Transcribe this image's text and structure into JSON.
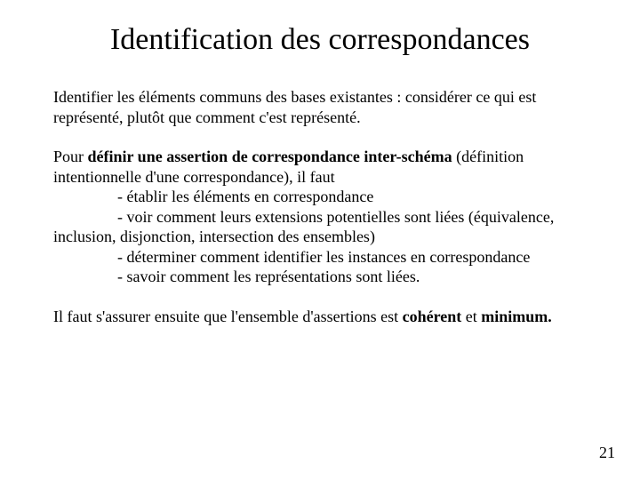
{
  "title": "Identification des correspondances",
  "p1": "Identifier les éléments communs des bases existantes : considérer ce qui est représenté, plutôt que comment c'est représenté.",
  "p2_pre": "Pour ",
  "p2_bold": "définir une assertion de correspondance inter-schéma",
  "p2_post": " (définition intentionnelle d'une correspondance), il faut",
  "b1": "- établir les éléments en correspondance",
  "b2": "- voir comment leurs extensions potentielles sont liées (équivalence,",
  "b2c": "inclusion, disjonction, intersection des ensembles)",
  "b3": "- déterminer comment identifier les instances en correspondance",
  "b4": "- savoir comment les représentations sont liées.",
  "p3_pre": "Il faut s'assurer ensuite que l'ensemble d'assertions est ",
  "p3_bold1": "cohérent",
  "p3_mid": " et ",
  "p3_bold2": "minimum.",
  "page_number": "21",
  "colors": {
    "background": "#ffffff",
    "text": "#000000"
  },
  "typography": {
    "title_fontsize": 34,
    "body_fontsize": 18,
    "family": "Times New Roman"
  }
}
